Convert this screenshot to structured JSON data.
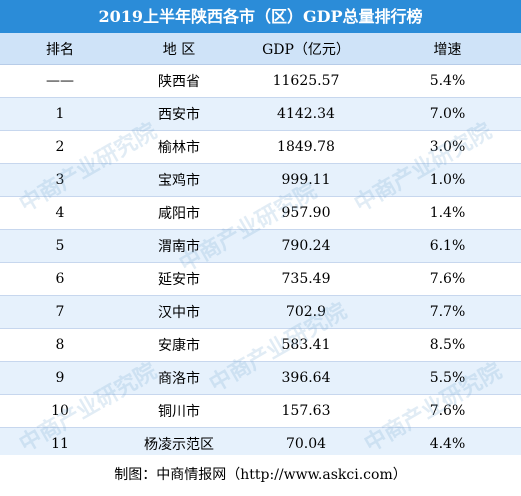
{
  "title": "2019上半年陕西各市（区）GDP总量排行榜",
  "headers": {
    "rank": "排名",
    "region": "地  区",
    "gdp": "GDP（亿元）",
    "growth": "增速"
  },
  "rows": [
    {
      "rank": "——",
      "region": "陕西省",
      "gdp": "11625.57",
      "growth": "5.4%"
    },
    {
      "rank": "1",
      "region": "西安市",
      "gdp": "4142.34",
      "growth": "7.0%"
    },
    {
      "rank": "2",
      "region": "榆林市",
      "gdp": "1849.78",
      "growth": "3.0%"
    },
    {
      "rank": "3",
      "region": "宝鸡市",
      "gdp": "999.11",
      "growth": "1.0%"
    },
    {
      "rank": "4",
      "region": "咸阳市",
      "gdp": "957.90",
      "growth": "1.4%"
    },
    {
      "rank": "5",
      "region": "渭南市",
      "gdp": "790.24",
      "growth": "6.1%"
    },
    {
      "rank": "6",
      "region": "延安市",
      "gdp": "735.49",
      "growth": "7.6%"
    },
    {
      "rank": "7",
      "region": "汉中市",
      "gdp": "702.9",
      "growth": "7.7%"
    },
    {
      "rank": "8",
      "region": "安康市",
      "gdp": "583.41",
      "growth": "8.5%"
    },
    {
      "rank": "9",
      "region": "商洛市",
      "gdp": "396.64",
      "growth": "5.5%"
    },
    {
      "rank": "10",
      "region": "铜川市",
      "gdp": "157.63",
      "growth": "7.6%"
    },
    {
      "rank": "11",
      "region": "杨凌示范区",
      "gdp": "70.04",
      "growth": "4.4%"
    }
  ],
  "footer": "制图：中商情报网（http://www.askci.com）",
  "watermark": "中商产业研究院",
  "colors": {
    "title_bg": "#2b8cd8",
    "header_bg": "#cfe3f8",
    "row_alt_bg": "#e6f1fc"
  }
}
